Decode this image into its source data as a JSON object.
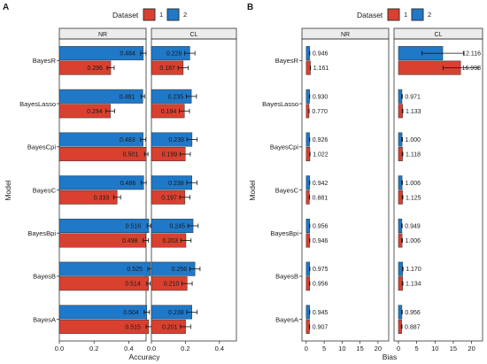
{
  "colors": {
    "series1": "#d9402f",
    "series2": "#1f78c8",
    "strip": "#ececec",
    "panel_border": "#333333"
  },
  "chart_data": [
    {
      "panel": "A",
      "type": "bar",
      "orientation": "horizontal",
      "legend": {
        "title": "Dataset",
        "entries": [
          "1",
          "2"
        ],
        "placement": "top"
      },
      "facets": [
        "NR",
        "CL"
      ],
      "categories": [
        "BayesR",
        "BayesLasso",
        "BayesCpi",
        "BayesC",
        "BayesBpi",
        "BayesB",
        "BayesA"
      ],
      "xlabel": "Accuracy",
      "ylabel": "Model",
      "xlim": [
        0,
        0.5
      ],
      "xticks": [
        "0.0",
        "0.2",
        "0.4"
      ],
      "xtick_values": [
        0.0,
        0.2,
        0.4
      ],
      "series": [
        {
          "name": "1",
          "color": "#d9402f",
          "values": {
            "NR": [
              0.296,
              0.294,
              0.501,
              0.333,
              0.498,
              0.514,
              0.515
            ],
            "CL": [
              0.187,
              0.194,
              0.199,
              0.197,
              0.203,
              0.21,
              0.201
            ]
          },
          "labels": {
            "NR": [
              "0.296",
              "0.294",
              "0.501",
              "0.333",
              "0.498",
              "0.514",
              "0.515"
            ],
            "CL": [
              "0.187",
              "0.194",
              "0.199",
              "0.197",
              "0.203",
              "0.210",
              "0.201"
            ]
          },
          "err": {
            "NR": [
              0.02,
              0.025,
              0.01,
              0.02,
              0.015,
              0.01,
              0.015
            ],
            "CL": [
              0.03,
              0.03,
              0.03,
              0.03,
              0.03,
              0.03,
              0.03
            ]
          }
        },
        {
          "name": "2",
          "color": "#1f78c8",
          "values": {
            "NR": [
              0.484,
              0.481,
              0.483,
              0.486,
              0.516,
              0.525,
              0.504
            ],
            "CL": [
              0.226,
              0.235,
              0.239,
              0.238,
              0.245,
              0.256,
              0.238
            ]
          },
          "labels": {
            "NR": [
              "0.484",
              "0.481",
              "0.483",
              "0.486",
              "0.516",
              "0.525",
              "0.504"
            ],
            "CL": [
              "0.226",
              "0.235",
              "0.239",
              "0.238",
              "0.245",
              "0.256",
              "0.238"
            ]
          },
          "err": {
            "NR": [
              0.015,
              0.01,
              0.015,
              0.015,
              0.01,
              0.015,
              0.015
            ],
            "CL": [
              0.03,
              0.03,
              0.03,
              0.03,
              0.03,
              0.03,
              0.03
            ]
          }
        }
      ]
    },
    {
      "panel": "B",
      "type": "bar",
      "orientation": "horizontal",
      "legend": {
        "title": "Dataset",
        "entries": [
          "1",
          "2"
        ],
        "placement": "top"
      },
      "facets": [
        "NR",
        "CL"
      ],
      "categories": [
        "BayesR",
        "BayesLasso",
        "BayesCpi",
        "BayesC",
        "BayesBpi",
        "BayesB",
        "BayesA"
      ],
      "xlabel": "Bias",
      "ylabel": "Model",
      "xlim": [
        -1.2,
        23
      ],
      "xticks": [
        "0",
        "5",
        "10",
        "15",
        "20"
      ],
      "xtick_values": [
        0,
        5,
        10,
        15,
        20
      ],
      "series": [
        {
          "name": "1",
          "color": "#d9402f",
          "values": {
            "NR": [
              1.161,
              0.77,
              1.022,
              0.881,
              0.946,
              0.956,
              0.907
            ],
            "CL": [
              16.998,
              1.133,
              1.118,
              1.125,
              1.006,
              1.134,
              0.887
            ]
          },
          "labels": {
            "NR": [
              "1.161",
              "0.770",
              "1.022",
              "0.881",
              "0.946",
              "0.956",
              "0.907"
            ],
            "CL": [
              "16.998",
              "1.133",
              "1.118",
              "1.125",
              "1.006",
              "1.134",
              "0.887"
            ]
          },
          "err": {
            "NR": [
              0.05,
              0.05,
              0.05,
              0.05,
              0.05,
              0.05,
              0.05
            ],
            "CL": [
              4.8,
              0.1,
              0.1,
              0.1,
              0.1,
              0.1,
              0.1
            ]
          }
        },
        {
          "name": "2",
          "color": "#1f78c8",
          "values": {
            "NR": [
              0.946,
              0.93,
              0.926,
              0.942,
              0.956,
              0.975,
              0.945
            ],
            "CL": [
              12.116,
              0.971,
              1.0,
              1.006,
              0.949,
              1.17,
              0.956
            ]
          },
          "labels": {
            "NR": [
              "0.946",
              "0.930",
              "0.926",
              "0.942",
              "0.956",
              "0.975",
              "0.945"
            ],
            "CL": [
              "12.116",
              "0.971",
              "1.000",
              "1.006",
              "0.949",
              "1.170",
              "0.956"
            ]
          },
          "err": {
            "NR": [
              0.05,
              0.05,
              0.05,
              0.05,
              0.05,
              0.05,
              0.05
            ],
            "CL": [
              5.7,
              0.1,
              0.1,
              0.1,
              0.1,
              0.1,
              0.1
            ]
          }
        }
      ]
    }
  ]
}
